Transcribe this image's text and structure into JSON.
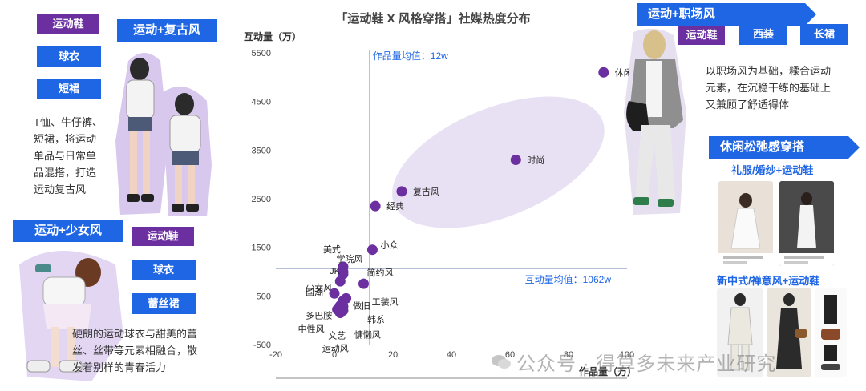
{
  "left_top": {
    "tags": [
      "运动鞋",
      "球衣",
      "短裙"
    ],
    "header": "运动+复古风",
    "desc": [
      "T恤、牛仔裤、",
      "短裙，将运动",
      "单品与日常单",
      "品混搭，打造",
      "运动复古风"
    ]
  },
  "left_bottom": {
    "header": "运动+少女风",
    "tags": [
      "运动鞋",
      "球衣",
      "蕾丝裙"
    ],
    "desc": [
      "硬朗的运动球衣与甜美的蕾",
      "丝、丝带等元素相融合，散",
      "发着别样的青春活力"
    ]
  },
  "right_top": {
    "header": "运动+职场风",
    "tags": [
      "运动鞋",
      "西装",
      "长裙"
    ],
    "desc": [
      "以职场风为基础，糅合运动",
      "元素，在沉稳干练的基础上",
      "又兼顾了舒适得体"
    ]
  },
  "right_bottom": {
    "header": "休闲松弛感穿搭",
    "sub1": "礼服/婚纱+运动鞋",
    "sub2": "新中式/禅意风+运动鞋"
  },
  "watermark": "公众号 · 得算多未来产业研究",
  "chart_data": {
    "type": "scatter",
    "title": "「运动鞋 X 风格穿搭」社媒热度分布",
    "xlabel": "作品量（万）",
    "ylabel": "互动量（万）",
    "xlim": [
      -20,
      100
    ],
    "ylim": [
      -500,
      5500
    ],
    "xticks": [
      -20,
      0,
      20,
      40,
      60,
      80,
      100
    ],
    "yticks": [
      -500,
      500,
      1500,
      2500,
      3500,
      4500,
      5500
    ],
    "x_mean": 12,
    "y_mean": 1062,
    "x_mean_label": "作品量均值：12w",
    "y_mean_label": "互动量均值：1062w",
    "point_color": "#6b2fa0",
    "points": [
      {
        "name": "休闲",
        "x": 92,
        "y": 5100
      },
      {
        "name": "时尚",
        "x": 62,
        "y": 3300
      },
      {
        "name": "复古风",
        "x": 23,
        "y": 2650
      },
      {
        "name": "经典",
        "x": 14,
        "y": 2350
      },
      {
        "name": "小众",
        "x": 13,
        "y": 1450
      },
      {
        "name": "美式",
        "x": 3,
        "y": 1100
      },
      {
        "name": "学院风",
        "x": 3,
        "y": 1000
      },
      {
        "name": "JK",
        "x": 3,
        "y": 950
      },
      {
        "name": "简约风",
        "x": 10,
        "y": 750
      },
      {
        "name": "少女风",
        "x": 2,
        "y": 800
      },
      {
        "name": "国潮",
        "x": 0,
        "y": 550
      },
      {
        "name": "工装风",
        "x": 4,
        "y": 450
      },
      {
        "name": "做旧",
        "x": 3,
        "y": 400
      },
      {
        "name": "多巴胺",
        "x": 2,
        "y": 300
      },
      {
        "name": "韩系",
        "x": 3,
        "y": 280
      },
      {
        "name": "中性风",
        "x": 1,
        "y": 220
      },
      {
        "name": "文艺",
        "x": 2,
        "y": 180
      },
      {
        "name": "慵懒风",
        "x": 3,
        "y": 200
      },
      {
        "name": "运动风",
        "x": 2,
        "y": 150
      }
    ]
  }
}
